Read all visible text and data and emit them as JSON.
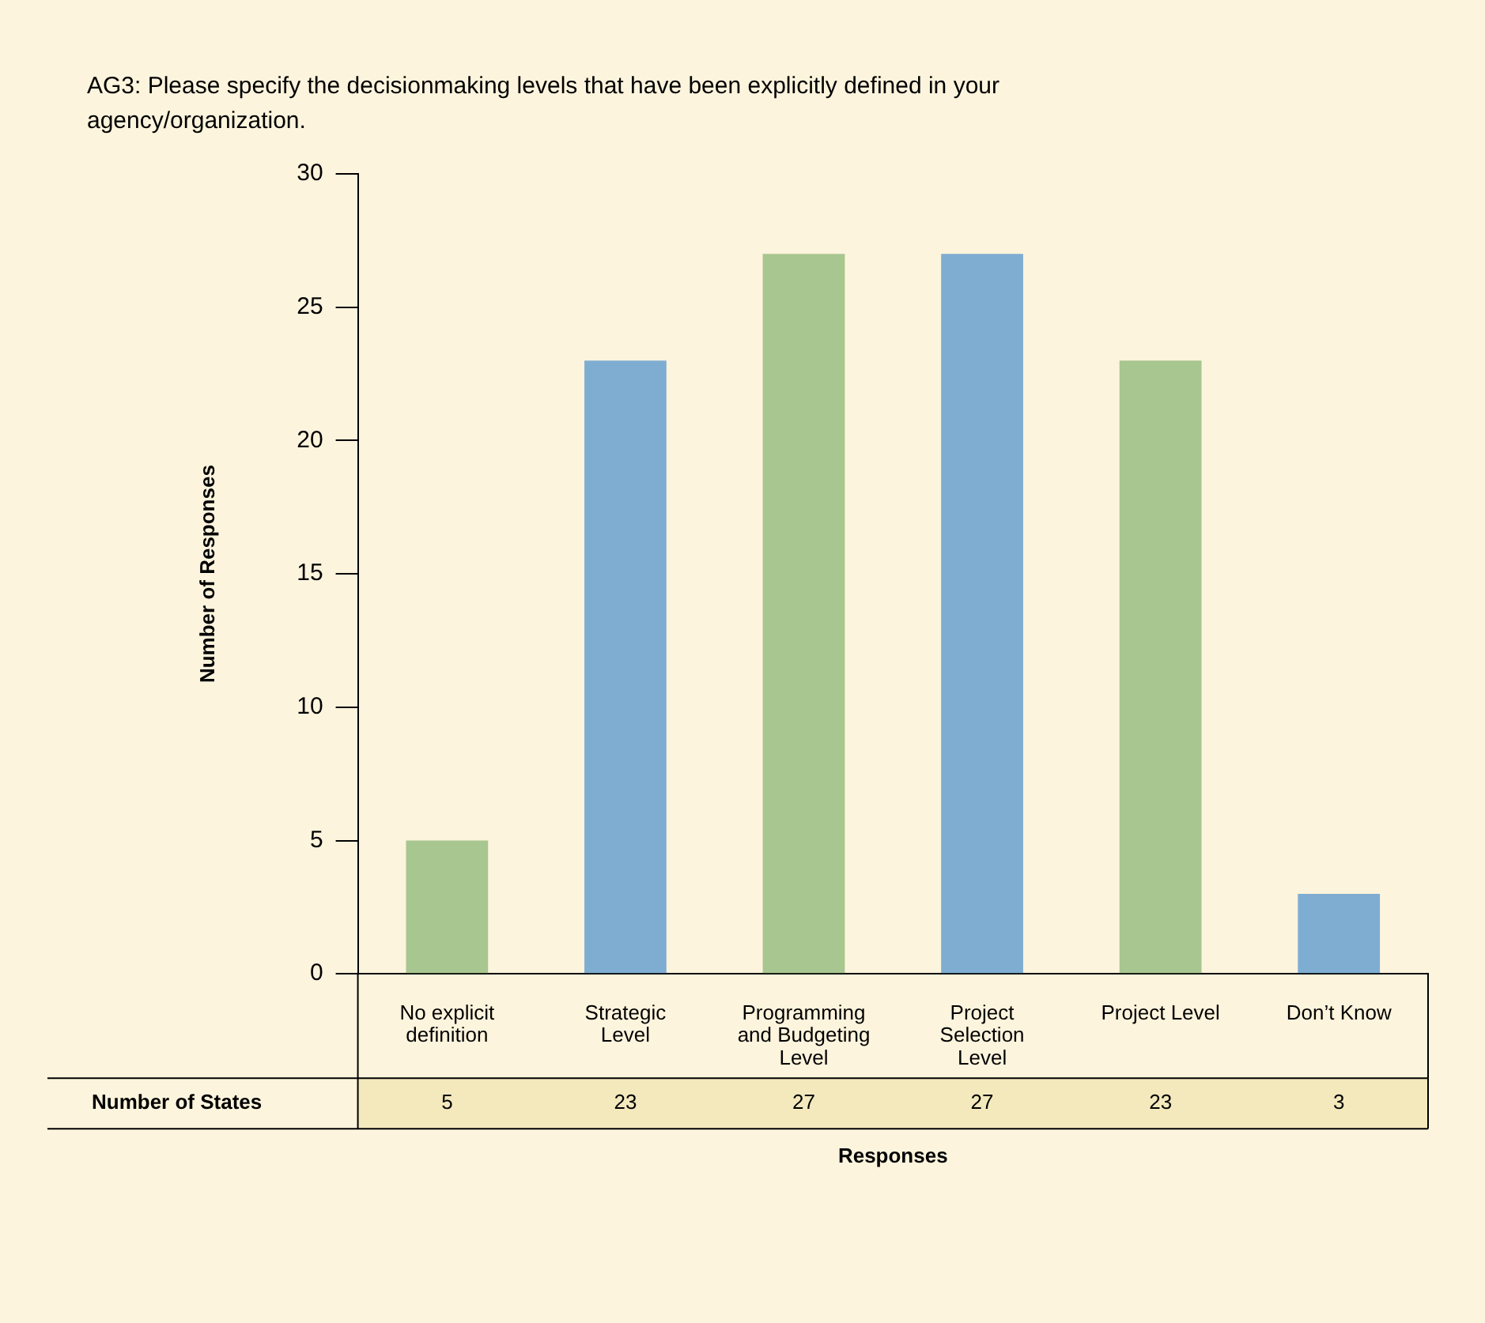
{
  "chart_data": {
    "type": "bar",
    "title": "AG3: Please specify the decisionmaking levels that have been explicitly defined in your agency/organization.",
    "xlabel": "Responses",
    "ylabel": "Number of Responses",
    "categories": [
      "No explicit definition",
      "Strategic Level",
      "Programming and Budgeting Level",
      "Project Selection Level",
      "Project Level",
      "Don’t Know"
    ],
    "values": [
      5,
      23,
      27,
      27,
      23,
      3
    ],
    "colors": [
      "#a8c68f",
      "#7eadd1",
      "#a8c68f",
      "#7eadd1",
      "#a8c68f",
      "#7eadd1"
    ],
    "ylim": [
      0,
      30
    ],
    "yticks": [
      0,
      5,
      10,
      15,
      20,
      25,
      30
    ],
    "grid": false,
    "legend": false,
    "data_labels": true,
    "annotations": [
      "Number of States"
    ]
  }
}
